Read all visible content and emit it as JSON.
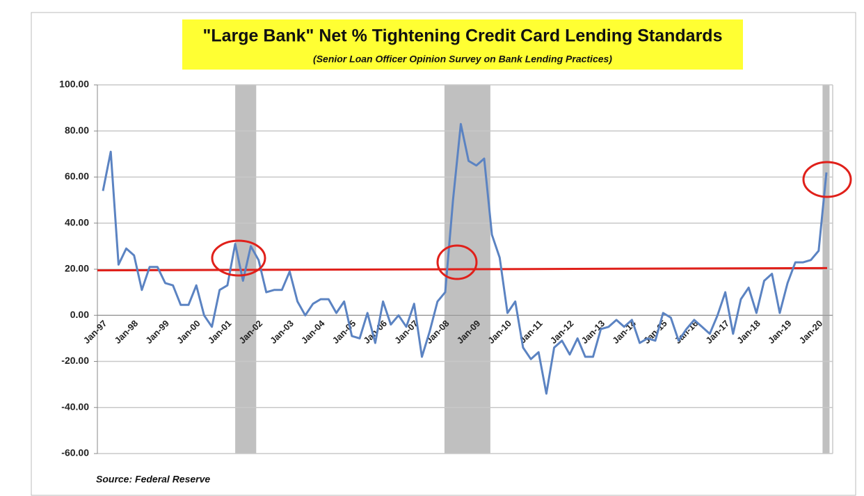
{
  "chart_data": {
    "type": "line",
    "title": "\"Large Bank\" Net % Tightening Credit Card Lending Standards",
    "subtitle": "(Senior Loan Officer Opinion Survey on Bank Lending Practices)",
    "source": "Source: Federal Reserve",
    "categories": [
      "Jan-97",
      null,
      null,
      null,
      "Jan-98",
      null,
      null,
      null,
      "Jan-99",
      null,
      null,
      null,
      "Jan-00",
      null,
      null,
      null,
      "Jan-01",
      null,
      null,
      null,
      "Jan-02",
      null,
      null,
      null,
      "Jan-03",
      null,
      null,
      null,
      "Jan-04",
      null,
      null,
      null,
      "Jan-05",
      null,
      null,
      null,
      "Jan-06",
      null,
      null,
      null,
      "Jan-07",
      null,
      null,
      null,
      "Jan-08",
      null,
      null,
      null,
      "Jan-09",
      null,
      null,
      null,
      "Jan-10",
      null,
      null,
      null,
      "Jan-11",
      null,
      null,
      null,
      "Jan-12",
      null,
      null,
      null,
      "Jan-13",
      null,
      null,
      null,
      "Jan-14",
      null,
      null,
      null,
      "Jan-15",
      null,
      null,
      null,
      "Jan-16",
      null,
      null,
      null,
      "Jan-17",
      null,
      null,
      null,
      "Jan-18",
      null,
      null,
      null,
      "Jan-19",
      null,
      null,
      null,
      "Jan-20",
      null
    ],
    "values": [
      54,
      71,
      22,
      29,
      26,
      11,
      21,
      21,
      14,
      13,
      4.5,
      4.5,
      13,
      0,
      -5,
      11,
      13,
      31,
      15,
      30,
      24,
      10,
      11,
      11,
      19,
      6,
      0,
      5,
      7,
      7,
      1,
      6,
      -9,
      -10,
      1,
      -12,
      6,
      -4,
      0,
      -5,
      5,
      -18,
      -7,
      6,
      10,
      50,
      83,
      67,
      65,
      68,
      35,
      25,
      1,
      6,
      -14,
      -19,
      -16,
      -34,
      -14,
      -11,
      -17,
      -10,
      -18,
      -18,
      -6,
      -5,
      -2,
      -5,
      -2,
      -12,
      -10,
      -11,
      1,
      -1,
      -11,
      -6,
      -2,
      -5,
      -8,
      0,
      10,
      -8,
      7,
      12,
      1,
      15,
      18,
      1,
      14,
      23,
      23,
      24,
      28,
      62
    ],
    "color": "#5b83c2",
    "ylim": [
      -60,
      100
    ],
    "yticks": [
      {
        "value": -60,
        "label": "-60.00"
      },
      {
        "value": -40,
        "label": "-40.00"
      },
      {
        "value": -20,
        "label": "-20.00"
      },
      {
        "value": 0,
        "label": "0.00"
      },
      {
        "value": 20,
        "label": "20.00"
      },
      {
        "value": 40,
        "label": "40.00"
      },
      {
        "value": 60,
        "label": "60.00"
      },
      {
        "value": 80,
        "label": "80.00"
      },
      {
        "value": 100,
        "label": "100.00"
      }
    ],
    "grid": true,
    "shaded_ranges": [
      [
        17,
        19.7
      ],
      [
        43.9,
        49.8
      ],
      [
        92.5,
        93.4
      ]
    ],
    "reference_line": {
      "from": 19.5,
      "to": 20.5,
      "color": "#e0201a"
    }
  }
}
